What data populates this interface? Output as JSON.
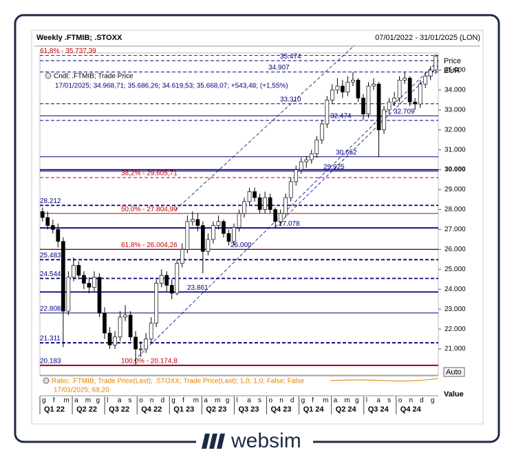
{
  "chart_data": {
    "type": "candlestick",
    "title": "Weekly .FTMIB; .STOXX",
    "subtitle": "07/01/2022 - 31/01/2025 (LON)",
    "y_label": "Price",
    "y_unit": "EUR",
    "legend_title": "Cndl; .FTMIB; Trade Price",
    "legend_text": "17/01/2025; 34.968,71; 35.686,26; 34.619,53; 35.668,07; +543,48; (+1,55%)",
    "ratio_title": "Ratio; .FTMIB; Trade Price(Last); .STOXX; Trade Price(Last); 1,0; 1,0; False; False",
    "ratio_text": "17/01/2025; 69,20",
    "auto_button": "Auto",
    "value_label": "Value",
    "months": [
      "g",
      "f",
      "m",
      "a",
      "m",
      "g",
      "l",
      "a",
      "s",
      "o",
      "n",
      "d",
      "g",
      "f",
      "m",
      "a",
      "m",
      "g",
      "l",
      "a",
      "s",
      "o",
      "n",
      "d",
      "g",
      "f",
      "m",
      "a",
      "m",
      "g",
      "l",
      "a",
      "s",
      "o",
      "n",
      "d",
      "g"
    ],
    "quarters": [
      "Q1 22",
      "Q2 22",
      "Q3 22",
      "Q4 22",
      "Q1 23",
      "Q2 23",
      "Q3 23",
      "Q4 23",
      "Q1 24",
      "Q2 24",
      "Q3 24",
      "Q4 24"
    ],
    "open": [
      27900,
      27600,
      27200,
      27000,
      26400,
      22900,
      24600,
      25200,
      24700,
      24300,
      24100,
      24600,
      22800,
      21800,
      21200,
      21600,
      22600,
      22700,
      21600,
      21000,
      21000,
      21500,
      22300,
      24300,
      24700,
      24200,
      23800,
      25300,
      26000,
      27400,
      27500,
      27200,
      25900,
      26500,
      27200,
      27400,
      26800,
      26400,
      27100,
      27800,
      28400,
      28900,
      28600,
      28000,
      28600,
      28000,
      27400,
      27800,
      28600,
      29400,
      30000,
      30400,
      30500,
      30800,
      31500,
      32300,
      33500,
      34000,
      34200,
      33900,
      34400,
      34500,
      33600,
      32800,
      34200,
      34300,
      32000,
      33000,
      33400,
      33600,
      34500,
      34600,
      33400,
      33300,
      34300,
      34700,
      35000
    ],
    "high": [
      28100,
      27900,
      27500,
      27300,
      26600,
      24900,
      25600,
      25400,
      24900,
      24600,
      24900,
      24800,
      23100,
      22100,
      21900,
      22900,
      23200,
      22900,
      21900,
      21400,
      21800,
      22600,
      24500,
      25000,
      24900,
      24500,
      25500,
      26300,
      27700,
      27900,
      27800,
      27400,
      26800,
      27400,
      27700,
      27500,
      27000,
      27300,
      28000,
      28600,
      29100,
      29100,
      28800,
      28900,
      28800,
      28100,
      28000,
      28800,
      29600,
      30200,
      30600,
      30700,
      31000,
      31700,
      32500,
      33700,
      34300,
      34600,
      34500,
      34700,
      34900,
      34600,
      33800,
      34400,
      34600,
      34400,
      33200,
      33600,
      33900,
      34700,
      34900,
      34700,
      33600,
      34500,
      34900,
      35200,
      35800
    ],
    "low": [
      27400,
      27000,
      26800,
      26100,
      21100,
      22700,
      24400,
      24500,
      24000,
      23800,
      23900,
      22600,
      21500,
      21000,
      21000,
      21400,
      22400,
      21400,
      20200,
      20600,
      20800,
      21300,
      22100,
      24100,
      23900,
      23500,
      23700,
      25100,
      25800,
      27200,
      26900,
      24800,
      25700,
      26300,
      27000,
      26600,
      26200,
      26200,
      26900,
      27600,
      28200,
      28400,
      27800,
      27800,
      27800,
      27050,
      27200,
      27600,
      28400,
      29200,
      29800,
      30100,
      30300,
      30600,
      31300,
      32100,
      33300,
      33800,
      33600,
      33700,
      34200,
      33400,
      32500,
      32600,
      34000,
      30650,
      31800,
      32800,
      33200,
      33400,
      34300,
      33200,
      33000,
      33100,
      34100,
      34500,
      34800
    ],
    "close": [
      27600,
      27200,
      27000,
      26400,
      22900,
      24600,
      25200,
      24700,
      24300,
      24100,
      24600,
      22800,
      21800,
      21200,
      21600,
      22600,
      22700,
      21600,
      21000,
      21000,
      21500,
      22300,
      24300,
      24700,
      24200,
      23800,
      25300,
      26000,
      27400,
      27500,
      27200,
      25900,
      26500,
      27200,
      27400,
      26800,
      26400,
      27100,
      27800,
      28400,
      28900,
      28600,
      28000,
      28600,
      28000,
      27400,
      27800,
      28600,
      29400,
      30000,
      30400,
      30500,
      30800,
      31500,
      32300,
      33500,
      34000,
      34200,
      33900,
      34400,
      34500,
      33600,
      32800,
      34200,
      34300,
      32000,
      33000,
      33400,
      33600,
      34500,
      34600,
      33400,
      33300,
      34300,
      34700,
      35000,
      35700
    ],
    "ylim": [
      19690,
      35860
    ],
    "yticks": [
      {
        "value": 21000,
        "label": "21.000"
      },
      {
        "value": 22000,
        "label": "22.000"
      },
      {
        "value": 23000,
        "label": "23.000"
      },
      {
        "value": 24000,
        "label": "24.000"
      },
      {
        "value": 25000,
        "label": "25.000"
      },
      {
        "value": 26000,
        "label": "26.000"
      },
      {
        "value": 27000,
        "label": "27.000"
      },
      {
        "value": 28000,
        "label": "28.000"
      },
      {
        "value": 29000,
        "label": "29.000"
      },
      {
        "value": 30000,
        "label": "30.000",
        "bold": true
      },
      {
        "value": 31000,
        "label": "31.000"
      },
      {
        "value": 32000,
        "label": "32.000"
      },
      {
        "value": 33000,
        "label": "33.000"
      },
      {
        "value": 34000,
        "label": "34.000"
      },
      {
        "value": 35000,
        "label": "35.000"
      }
    ],
    "levels": [
      {
        "value": 35737.39,
        "label": "61,8% - 35.737,39",
        "color": "#c00000",
        "style": "dashed"
      },
      {
        "value": 35474,
        "label": "35.474",
        "color": "#000080",
        "style": "dashed"
      },
      {
        "value": 34907,
        "label": "34.907",
        "color": "#000080",
        "style": "dashed"
      },
      {
        "value": 33310,
        "label": "33.310",
        "color": "#000080",
        "style": "dashed"
      },
      {
        "value": 32474,
        "label": "32.474",
        "color": "#000080",
        "style": "dashed"
      },
      {
        "value": 32709,
        "label": "32.709",
        "color": "#000080",
        "style": "solid"
      },
      {
        "value": 30652,
        "label": "30.652",
        "color": "#000080",
        "style": "solid"
      },
      {
        "value": 30000,
        "color": "#000080",
        "style": "thick"
      },
      {
        "value": 29925,
        "label": "29.925",
        "color": "#000080",
        "style": "solid"
      },
      {
        "value": 29605.71,
        "label": "38,2% - 29.605,71",
        "color": "#c00000",
        "style": "dashed"
      },
      {
        "value": 28212,
        "label": "28.212",
        "color": "#000080",
        "style": "thickdashed"
      },
      {
        "value": 27804.99,
        "label": "50,0% - 27.804,99",
        "color": "#c00000",
        "style": "solid"
      },
      {
        "value": 27078,
        "label": "27.078",
        "color": "#000080",
        "style": "thick"
      },
      {
        "value": 26004.26,
        "label": "61,8% - 26.004,26",
        "color": "#c00000",
        "style": "solid"
      },
      {
        "value": 26000,
        "label": "26.000",
        "color": "#000080",
        "style": "solid"
      },
      {
        "value": 25483,
        "label": "25.483",
        "color": "#000080",
        "style": "thickdashed"
      },
      {
        "value": 24544,
        "label": "24.544",
        "color": "#000080",
        "style": "thickdashed"
      },
      {
        "value": 23861,
        "label": "23.861",
        "color": "#000080",
        "style": "thick"
      },
      {
        "value": 22808,
        "label": "22.808",
        "color": "#000080",
        "style": "solid"
      },
      {
        "value": 21311,
        "label": "21.311",
        "color": "#000080",
        "style": "thickdashed"
      },
      {
        "value": 20183,
        "label": "20.183",
        "color": "#000080",
        "style": "thick"
      },
      {
        "value": 20174.8,
        "label": "100,0% - 20.174,8",
        "color": "#c00000",
        "style": "thick"
      }
    ]
  },
  "footer": {
    "brand": "websim"
  }
}
